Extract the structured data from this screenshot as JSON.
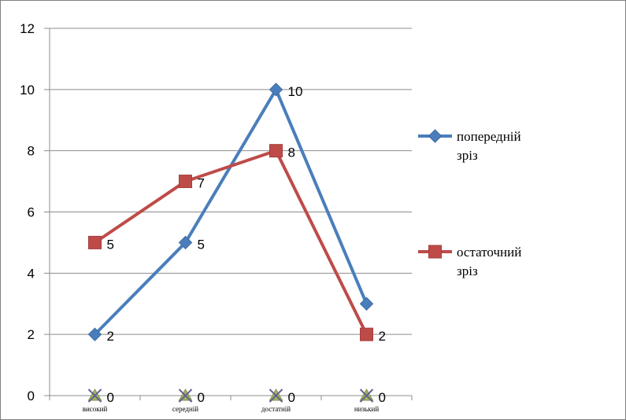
{
  "chart_data": {
    "type": "line",
    "title": "",
    "xlabel": "",
    "ylabel": "",
    "categories": [
      "високий",
      "середній",
      "достатній",
      "низький"
    ],
    "ylim": [
      0,
      12
    ],
    "yticks": [
      0,
      2,
      4,
      6,
      8,
      10,
      12
    ],
    "grid": true,
    "legend_position": "right",
    "series": [
      {
        "name": "попередній\nзріз",
        "values": [
          2,
          5,
          10,
          3
        ],
        "color": "#4a7ebb",
        "marker": "diamond",
        "labels": [
          "2",
          "5",
          "10",
          ""
        ]
      },
      {
        "name": "остаточний\nзріз",
        "values": [
          5,
          7,
          8,
          2
        ],
        "color": "#be4b48",
        "marker": "square",
        "labels": [
          "5",
          "7",
          "8",
          "2"
        ]
      },
      {
        "name": "",
        "values": [
          0,
          0,
          0,
          0
        ],
        "color": "#9bbb59",
        "marker": "x-triangle",
        "labels": [
          "0",
          "0",
          "0",
          "0"
        ]
      }
    ]
  }
}
